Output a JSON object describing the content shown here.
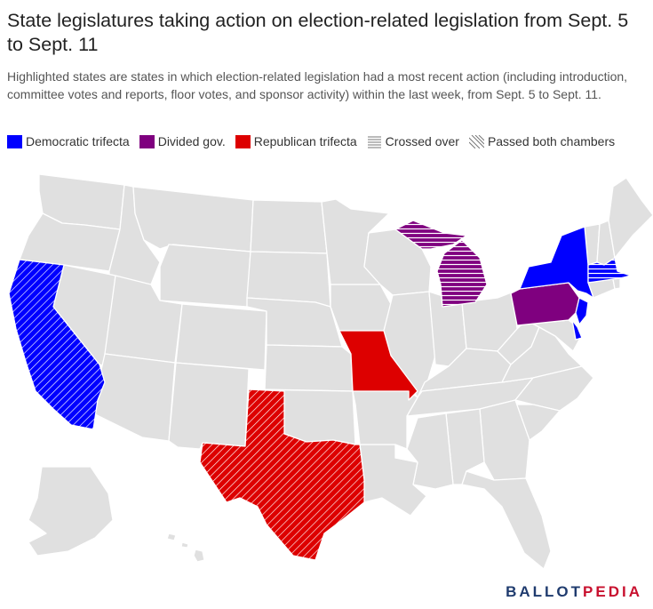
{
  "title": "State legislatures taking action on election-related legislation from Sept. 5 to Sept. 11",
  "subtitle": "Highlighted states are states in which election-related legislation had a most recent action (including introduction, committee votes and reports, floor votes, and sponsor activity) within the last week, from Sept. 5 to Sept. 11.",
  "legend": {
    "democratic": "Democratic trifecta",
    "divided": "Divided gov.",
    "republican": "Republican trifecta",
    "crossed": "Crossed over",
    "passed": "Passed both chambers"
  },
  "colors": {
    "democratic": "#0000ff",
    "divided": "#7f007f",
    "republican": "#dd0000",
    "inactive": "#e0e0e0",
    "border": "#ffffff"
  },
  "highlighted_states": [
    {
      "state": "California",
      "category": "democratic",
      "status": "passed"
    },
    {
      "state": "New York",
      "category": "democratic",
      "status": "none"
    },
    {
      "state": "Massachusetts",
      "category": "democratic",
      "status": "crossed"
    },
    {
      "state": "New Jersey",
      "category": "democratic",
      "status": "none"
    },
    {
      "state": "Delaware",
      "category": "democratic",
      "status": "none"
    },
    {
      "state": "Michigan",
      "category": "divided",
      "status": "crossed"
    },
    {
      "state": "Pennsylvania",
      "category": "divided",
      "status": "none"
    },
    {
      "state": "Missouri",
      "category": "republican",
      "status": "none"
    },
    {
      "state": "Texas",
      "category": "republican",
      "status": "passed"
    }
  ],
  "brand": {
    "part1": "BALLOT",
    "part2": "PEDIA"
  }
}
